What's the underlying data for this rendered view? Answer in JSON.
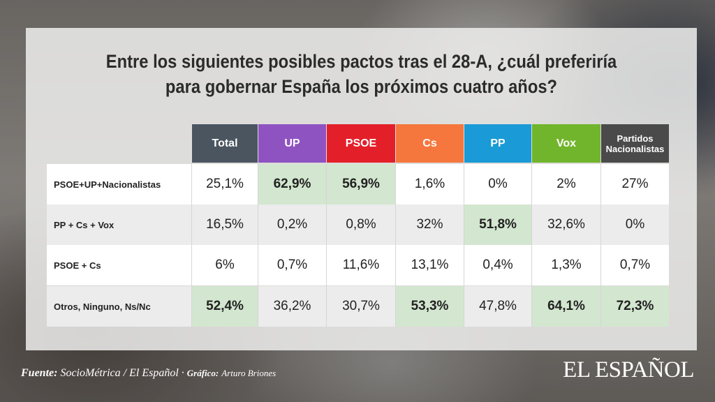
{
  "title_line1": "Entre los siguientes posibles pactos tras el 28-A, ¿cuál preferiría",
  "title_line2": "para gobernar España los próximos cuatro años?",
  "footer": {
    "source_label": "Fuente:",
    "source": "SocioMétrica / El Español",
    "separator": " · ",
    "graphic_label": "Gráfico:",
    "graphic_author": "Arturo Briones"
  },
  "logo": "EL ESPAÑOL",
  "colors": {
    "total": "#4a5560",
    "up": "#8e53c1",
    "psoe": "#e3202a",
    "cs": "#f5773d",
    "pp": "#1a9ad6",
    "vox": "#71b52c",
    "nac": "#4a4a4a",
    "highlight": "#d3e6cf",
    "row_alt": "#ececec",
    "row_white": "#ffffff"
  },
  "chart_data": {
    "type": "table",
    "columns": [
      "Total",
      "UP",
      "PSOE",
      "Cs",
      "PP",
      "Vox",
      "Partidos\nNacionalistas"
    ],
    "rows": [
      {
        "label": "PSOE+UP+Nacionalistas",
        "values": [
          "25,1%",
          "62,9%",
          "56,9%",
          "1,6%",
          "0%",
          "2%",
          "27%"
        ],
        "highlight": [
          false,
          true,
          true,
          false,
          false,
          false,
          false
        ]
      },
      {
        "label": "PP + Cs + Vox",
        "values": [
          "16,5%",
          "0,2%",
          "0,8%",
          "32%",
          "51,8%",
          "32,6%",
          "0%"
        ],
        "highlight": [
          false,
          false,
          false,
          false,
          true,
          false,
          false
        ]
      },
      {
        "label": "PSOE + Cs",
        "values": [
          "6%",
          "0,7%",
          "11,6%",
          "13,1%",
          "0,4%",
          "1,3%",
          "0,7%"
        ],
        "highlight": [
          false,
          false,
          false,
          false,
          false,
          false,
          false
        ]
      },
      {
        "label": "Otros, Ninguno, Ns/Nc",
        "values": [
          "52,4%",
          "36,2%",
          "30,7%",
          "53,3%",
          "47,8%",
          "64,1%",
          "72,3%"
        ],
        "highlight": [
          true,
          false,
          false,
          true,
          false,
          true,
          true
        ]
      }
    ]
  }
}
